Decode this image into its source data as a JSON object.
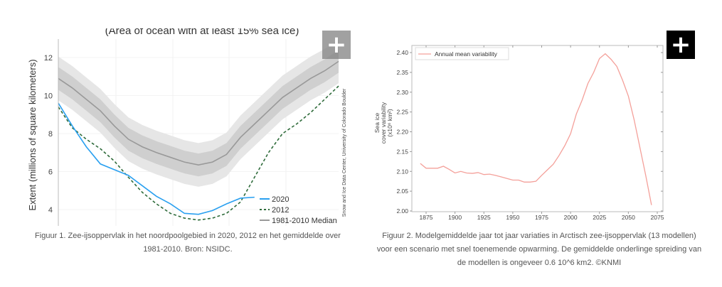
{
  "figures": [
    {
      "caption": "Figuur 1. Zee-ijsoppervlak in het noordpoolgebied in 2020, 2012 en het gemiddelde over 1981-2010. Bron: NSIDC.",
      "expand_icon": "plus-icon"
    },
    {
      "caption": "Figuur 2. Modelgemiddelde jaar tot jaar variaties in Arctisch zee-ijsoppervlak (13 modellen) voor een scenario met snel toenemende opwarming. De gemiddelde onderlinge spreiding van de modellen is ongeveer 0.6 10^6 km2. ©KNMI",
      "expand_icon": "plus-icon"
    }
  ],
  "chart_data": [
    {
      "type": "line",
      "title": "(Area of ocean with at least 15% sea ice)",
      "ylabel": "Extent (millions of square kilometers)",
      "xlabel": "",
      "ylim": [
        3.2,
        13
      ],
      "yticks": [
        "12",
        "10",
        "8",
        "6",
        "4"
      ],
      "credit": "Snow and Ice Data Center, University of Colorado Boulder",
      "legend_position": "bottom-right",
      "series": [
        {
          "name": "2020",
          "color": "#2aa0f0",
          "style": "solid",
          "values": [
            9.6,
            8.4,
            7.3,
            6.4,
            6.1,
            5.8,
            5.25,
            4.7,
            4.3,
            3.8,
            3.75,
            3.95,
            4.3,
            4.6,
            4.65
          ]
        },
        {
          "name": "2012",
          "color": "#2e6b3a",
          "style": "dashed",
          "values": [
            9.4,
            8.3,
            7.7,
            7.2,
            6.55,
            5.7,
            4.9,
            4.3,
            3.8,
            3.55,
            3.45,
            3.55,
            3.8,
            4.4,
            5.7,
            7.0,
            8.0,
            8.5,
            9.1,
            9.8,
            10.5
          ]
        },
        {
          "name": "1981-2010 Median",
          "color": "#999999",
          "style": "solid",
          "values": [
            10.9,
            10.4,
            9.8,
            9.2,
            8.4,
            7.7,
            7.3,
            7.0,
            6.75,
            6.5,
            6.35,
            6.5,
            6.9,
            7.8,
            8.5,
            9.2,
            9.9,
            10.4,
            10.9,
            11.3,
            11.8
          ]
        }
      ]
    },
    {
      "type": "line",
      "title": "",
      "ylabel": [
        "Sea ice",
        "cover variability",
        "(x10⁶ km²)"
      ],
      "xlabel": "",
      "xlim": [
        1860,
        2080
      ],
      "ylim": [
        2.0,
        2.42
      ],
      "xticks": [
        1875,
        1900,
        1925,
        1950,
        1975,
        2000,
        2025,
        2050,
        2075
      ],
      "yticks": [
        "2.00",
        "2.05",
        "2.10",
        "2.15",
        "2.20",
        "2.25",
        "2.30",
        "2.35",
        "2.40"
      ],
      "legend_position": "top-left",
      "series": [
        {
          "name": "Annual mean variability",
          "color": "#f4a09a",
          "x": [
            1870,
            1875,
            1880,
            1885,
            1890,
            1895,
            1900,
            1905,
            1910,
            1915,
            1920,
            1925,
            1930,
            1935,
            1940,
            1945,
            1950,
            1955,
            1960,
            1965,
            1970,
            1975,
            1980,
            1985,
            1990,
            1995,
            2000,
            2005,
            2010,
            2015,
            2020,
            2025,
            2030,
            2035,
            2040,
            2045,
            2050,
            2055,
            2060,
            2065,
            2070
          ],
          "y": [
            2.12,
            2.108,
            2.108,
            2.108,
            2.113,
            2.105,
            2.096,
            2.1,
            2.096,
            2.095,
            2.097,
            2.092,
            2.093,
            2.09,
            2.086,
            2.082,
            2.078,
            2.078,
            2.073,
            2.073,
            2.075,
            2.09,
            2.104,
            2.118,
            2.14,
            2.165,
            2.195,
            2.245,
            2.28,
            2.322,
            2.35,
            2.385,
            2.397,
            2.383,
            2.365,
            2.33,
            2.29,
            2.23,
            2.16,
            2.09,
            2.015
          ]
        }
      ]
    }
  ]
}
